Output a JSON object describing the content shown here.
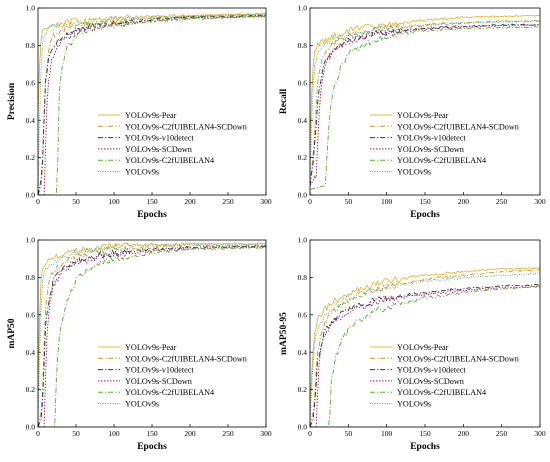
{
  "chart_data": [
    {
      "type": "line",
      "ylabel": "Precision",
      "xlabel": "Epochs",
      "xlim": [
        0,
        300
      ],
      "ylim": [
        0.0,
        1.0
      ],
      "xticks": [
        "0",
        "50",
        "100",
        "150",
        "200",
        "250",
        "300"
      ],
      "yticks": [
        "0.0",
        "0.2",
        "0.4",
        "0.6",
        "0.8",
        "1.0"
      ],
      "legend_position": "lower-right",
      "series": [
        {
          "name": "YOLOv9s-Pear",
          "color": "#E8B830",
          "dash": "solid",
          "x": [
            0,
            3,
            6,
            10,
            15,
            20,
            30,
            50,
            80,
            100,
            150,
            200,
            250,
            300
          ],
          "values": [
            0.45,
            0.8,
            0.87,
            0.89,
            0.9,
            0.91,
            0.92,
            0.93,
            0.94,
            0.945,
            0.955,
            0.96,
            0.965,
            0.97
          ]
        },
        {
          "name": "YOLOv9s-C2fUIBELAN4-SCDown",
          "color": "#C29A2A",
          "dash": "dashdot",
          "x": [
            0,
            5,
            10,
            15,
            20,
            30,
            50,
            80,
            100,
            150,
            200,
            250,
            300
          ],
          "values": [
            0.0,
            0.05,
            0.6,
            0.8,
            0.85,
            0.88,
            0.91,
            0.92,
            0.93,
            0.945,
            0.955,
            0.96,
            0.965
          ]
        },
        {
          "name": "YOLOv9s-v10detect",
          "color": "#3A2A4A",
          "dash": "dashdot",
          "x": [
            0,
            5,
            10,
            15,
            20,
            30,
            50,
            80,
            100,
            150,
            200,
            250,
            300
          ],
          "values": [
            0.0,
            0.1,
            0.6,
            0.75,
            0.8,
            0.84,
            0.88,
            0.91,
            0.92,
            0.94,
            0.95,
            0.955,
            0.96
          ]
        },
        {
          "name": "YOLOv9s-SCDown",
          "color": "#9A1A6A",
          "dash": "dot",
          "x": [
            0,
            8,
            12,
            15,
            20,
            30,
            50,
            80,
            100,
            150,
            200,
            250,
            300
          ],
          "values": [
            0.0,
            0.0,
            0.5,
            0.65,
            0.75,
            0.82,
            0.87,
            0.9,
            0.91,
            0.93,
            0.945,
            0.95,
            0.955
          ]
        },
        {
          "name": "YOLOv9s-C2fUIBELAN4",
          "color": "#5AAA2A",
          "dash": "dashdot",
          "x": [
            0,
            25,
            28,
            32,
            40,
            50,
            60,
            80,
            100,
            150,
            200,
            250,
            300
          ],
          "values": [
            0.0,
            0.0,
            0.55,
            0.7,
            0.8,
            0.85,
            0.88,
            0.9,
            0.91,
            0.93,
            0.94,
            0.95,
            0.955
          ]
        },
        {
          "name": "YOLOv9s",
          "color": "#1A9A8A",
          "dash": "densedot",
          "x": [
            0,
            3,
            6,
            10,
            15,
            20,
            30,
            50,
            80,
            100,
            150,
            200,
            250,
            300
          ],
          "values": [
            0.0,
            0.6,
            0.82,
            0.87,
            0.89,
            0.9,
            0.91,
            0.92,
            0.93,
            0.94,
            0.95,
            0.955,
            0.96,
            0.965
          ]
        }
      ]
    },
    {
      "type": "line",
      "ylabel": "Recall",
      "xlabel": "Epochs",
      "xlim": [
        0,
        300
      ],
      "ylim": [
        0.0,
        1.0
      ],
      "xticks": [
        "0",
        "50",
        "100",
        "150",
        "200",
        "250",
        "300"
      ],
      "yticks": [
        "0.0",
        "0.2",
        "0.4",
        "0.6",
        "0.8",
        "1.0"
      ],
      "legend_position": "lower-right",
      "series": [
        {
          "name": "YOLOv9s-Pear",
          "color": "#E8B830",
          "dash": "solid",
          "x": [
            0,
            3,
            6,
            10,
            20,
            30,
            50,
            80,
            100,
            150,
            200,
            250,
            300
          ],
          "values": [
            0.25,
            0.65,
            0.75,
            0.8,
            0.83,
            0.85,
            0.88,
            0.9,
            0.91,
            0.935,
            0.95,
            0.955,
            0.96
          ]
        },
        {
          "name": "YOLOv9s-C2fUIBELAN4-SCDown",
          "color": "#C29A2A",
          "dash": "dashdot",
          "x": [
            0,
            5,
            10,
            15,
            20,
            30,
            50,
            80,
            100,
            150,
            200,
            250,
            300
          ],
          "values": [
            0.05,
            0.25,
            0.6,
            0.72,
            0.77,
            0.81,
            0.85,
            0.88,
            0.89,
            0.91,
            0.92,
            0.93,
            0.93
          ]
        },
        {
          "name": "YOLOv9s-v10detect",
          "color": "#3A2A4A",
          "dash": "dashdot",
          "x": [
            0,
            5,
            10,
            15,
            20,
            30,
            50,
            80,
            100,
            150,
            200,
            250,
            300
          ],
          "values": [
            0.05,
            0.2,
            0.5,
            0.65,
            0.72,
            0.78,
            0.83,
            0.86,
            0.87,
            0.89,
            0.9,
            0.91,
            0.91
          ]
        },
        {
          "name": "YOLOv9s-SCDown",
          "color": "#9A1A6A",
          "dash": "dot",
          "x": [
            0,
            8,
            12,
            15,
            20,
            30,
            50,
            80,
            100,
            150,
            200,
            250,
            300
          ],
          "values": [
            0.05,
            0.1,
            0.45,
            0.6,
            0.7,
            0.77,
            0.82,
            0.86,
            0.87,
            0.89,
            0.9,
            0.905,
            0.91
          ]
        },
        {
          "name": "YOLOv9s-C2fUIBELAN4",
          "color": "#5AAA2A",
          "dash": "dashdot",
          "x": [
            0,
            20,
            25,
            30,
            40,
            50,
            60,
            80,
            100,
            150,
            200,
            250,
            300
          ],
          "values": [
            0.03,
            0.05,
            0.4,
            0.55,
            0.68,
            0.75,
            0.78,
            0.82,
            0.85,
            0.88,
            0.89,
            0.895,
            0.9
          ]
        },
        {
          "name": "YOLOv9s",
          "color": "#1A9A8A",
          "dash": "densedot",
          "x": [
            0,
            3,
            6,
            10,
            20,
            30,
            50,
            80,
            100,
            150,
            200,
            250,
            300
          ],
          "values": [
            0.05,
            0.5,
            0.7,
            0.76,
            0.8,
            0.83,
            0.86,
            0.88,
            0.89,
            0.91,
            0.92,
            0.925,
            0.93
          ]
        }
      ]
    },
    {
      "type": "line",
      "ylabel": "mAP50",
      "xlabel": "Epochs",
      "xlim": [
        0,
        300
      ],
      "ylim": [
        0.0,
        1.0
      ],
      "xticks": [
        "0",
        "50",
        "100",
        "150",
        "200",
        "250",
        "300"
      ],
      "yticks": [
        "0.0",
        "0.2",
        "0.4",
        "0.6",
        "0.8",
        "1.0"
      ],
      "legend_position": "lower-right",
      "series": [
        {
          "name": "YOLOv9s-Pear",
          "color": "#E8B830",
          "dash": "solid",
          "x": [
            0,
            3,
            6,
            10,
            20,
            30,
            50,
            80,
            100,
            150,
            200,
            250,
            300
          ],
          "values": [
            0.2,
            0.75,
            0.85,
            0.88,
            0.9,
            0.92,
            0.94,
            0.96,
            0.97,
            0.975,
            0.98,
            0.98,
            0.98
          ]
        },
        {
          "name": "YOLOv9s-C2fUIBELAN4-SCDown",
          "color": "#C29A2A",
          "dash": "dashdot",
          "x": [
            0,
            5,
            10,
            15,
            20,
            30,
            50,
            80,
            100,
            150,
            200,
            250,
            300
          ],
          "values": [
            0.0,
            0.1,
            0.65,
            0.78,
            0.83,
            0.87,
            0.91,
            0.94,
            0.95,
            0.96,
            0.97,
            0.97,
            0.97
          ]
        },
        {
          "name": "YOLOv9s-v10detect",
          "color": "#3A2A4A",
          "dash": "dashdot",
          "x": [
            0,
            5,
            10,
            15,
            20,
            30,
            50,
            80,
            100,
            150,
            200,
            250,
            300
          ],
          "values": [
            0.0,
            0.05,
            0.55,
            0.7,
            0.78,
            0.84,
            0.89,
            0.92,
            0.93,
            0.95,
            0.96,
            0.965,
            0.965
          ]
        },
        {
          "name": "YOLOv9s-SCDown",
          "color": "#9A1A6A",
          "dash": "dot",
          "x": [
            0,
            8,
            12,
            15,
            20,
            30,
            50,
            80,
            100,
            150,
            200,
            250,
            300
          ],
          "values": [
            0.0,
            0.0,
            0.5,
            0.65,
            0.75,
            0.82,
            0.88,
            0.91,
            0.92,
            0.94,
            0.955,
            0.96,
            0.96
          ]
        },
        {
          "name": "YOLOv9s-C2fUIBELAN4",
          "color": "#5AAA2A",
          "dash": "dashdot",
          "x": [
            0,
            22,
            25,
            30,
            40,
            50,
            60,
            80,
            100,
            150,
            200,
            250,
            300
          ],
          "values": [
            0.0,
            0.0,
            0.35,
            0.55,
            0.7,
            0.78,
            0.83,
            0.88,
            0.9,
            0.93,
            0.95,
            0.955,
            0.96
          ]
        },
        {
          "name": "YOLOv9s",
          "color": "#1A9A8A",
          "dash": "densedot",
          "x": [
            0,
            3,
            6,
            10,
            20,
            30,
            50,
            80,
            100,
            150,
            200,
            250,
            300
          ],
          "values": [
            0.0,
            0.55,
            0.78,
            0.84,
            0.88,
            0.9,
            0.93,
            0.95,
            0.96,
            0.97,
            0.975,
            0.975,
            0.975
          ]
        }
      ]
    },
    {
      "type": "line",
      "ylabel": "mAP50-95",
      "xlabel": "Epochs",
      "xlim": [
        0,
        300
      ],
      "ylim": [
        0.0,
        1.0
      ],
      "xticks": [
        "0",
        "50",
        "100",
        "150",
        "200",
        "250",
        "300"
      ],
      "yticks": [
        "0.0",
        "0.2",
        "0.4",
        "0.6",
        "0.8",
        "1.0"
      ],
      "legend_position": "lower-right",
      "series": [
        {
          "name": "YOLOv9s-Pear",
          "color": "#E8B830",
          "dash": "solid",
          "x": [
            0,
            3,
            6,
            10,
            20,
            30,
            50,
            80,
            100,
            150,
            200,
            250,
            300
          ],
          "values": [
            0.1,
            0.35,
            0.5,
            0.57,
            0.63,
            0.67,
            0.72,
            0.76,
            0.78,
            0.81,
            0.83,
            0.845,
            0.85
          ]
        },
        {
          "name": "YOLOv9s-C2fUIBELAN4-SCDown",
          "color": "#C29A2A",
          "dash": "dashdot",
          "x": [
            0,
            5,
            10,
            15,
            20,
            30,
            50,
            80,
            100,
            150,
            200,
            250,
            300
          ],
          "values": [
            0.0,
            0.1,
            0.4,
            0.5,
            0.56,
            0.62,
            0.68,
            0.73,
            0.75,
            0.79,
            0.81,
            0.83,
            0.84
          ]
        },
        {
          "name": "YOLOv9s-v10detect",
          "color": "#3A2A4A",
          "dash": "dashdot",
          "x": [
            0,
            5,
            10,
            15,
            20,
            30,
            50,
            80,
            100,
            150,
            200,
            250,
            300
          ],
          "values": [
            0.0,
            0.05,
            0.35,
            0.45,
            0.51,
            0.57,
            0.63,
            0.67,
            0.69,
            0.72,
            0.74,
            0.755,
            0.76
          ]
        },
        {
          "name": "YOLOv9s-SCDown",
          "color": "#9A1A6A",
          "dash": "dot",
          "x": [
            0,
            8,
            12,
            15,
            20,
            30,
            50,
            80,
            100,
            150,
            200,
            250,
            300
          ],
          "values": [
            0.0,
            0.0,
            0.35,
            0.43,
            0.5,
            0.56,
            0.62,
            0.66,
            0.68,
            0.71,
            0.73,
            0.745,
            0.75
          ]
        },
        {
          "name": "YOLOv9s-C2fUIBELAN4",
          "color": "#5AAA2A",
          "dash": "dashdot",
          "x": [
            0,
            25,
            28,
            32,
            40,
            50,
            60,
            80,
            100,
            150,
            200,
            250,
            300
          ],
          "values": [
            0.0,
            0.0,
            0.25,
            0.35,
            0.45,
            0.52,
            0.56,
            0.61,
            0.64,
            0.69,
            0.72,
            0.74,
            0.75
          ]
        },
        {
          "name": "YOLOv9s",
          "color": "#1A9A8A",
          "dash": "densedot",
          "x": [
            0,
            3,
            6,
            10,
            20,
            30,
            50,
            80,
            100,
            150,
            200,
            250,
            300
          ],
          "values": [
            0.0,
            0.3,
            0.45,
            0.53,
            0.6,
            0.64,
            0.69,
            0.73,
            0.75,
            0.78,
            0.8,
            0.81,
            0.82
          ]
        }
      ]
    }
  ]
}
